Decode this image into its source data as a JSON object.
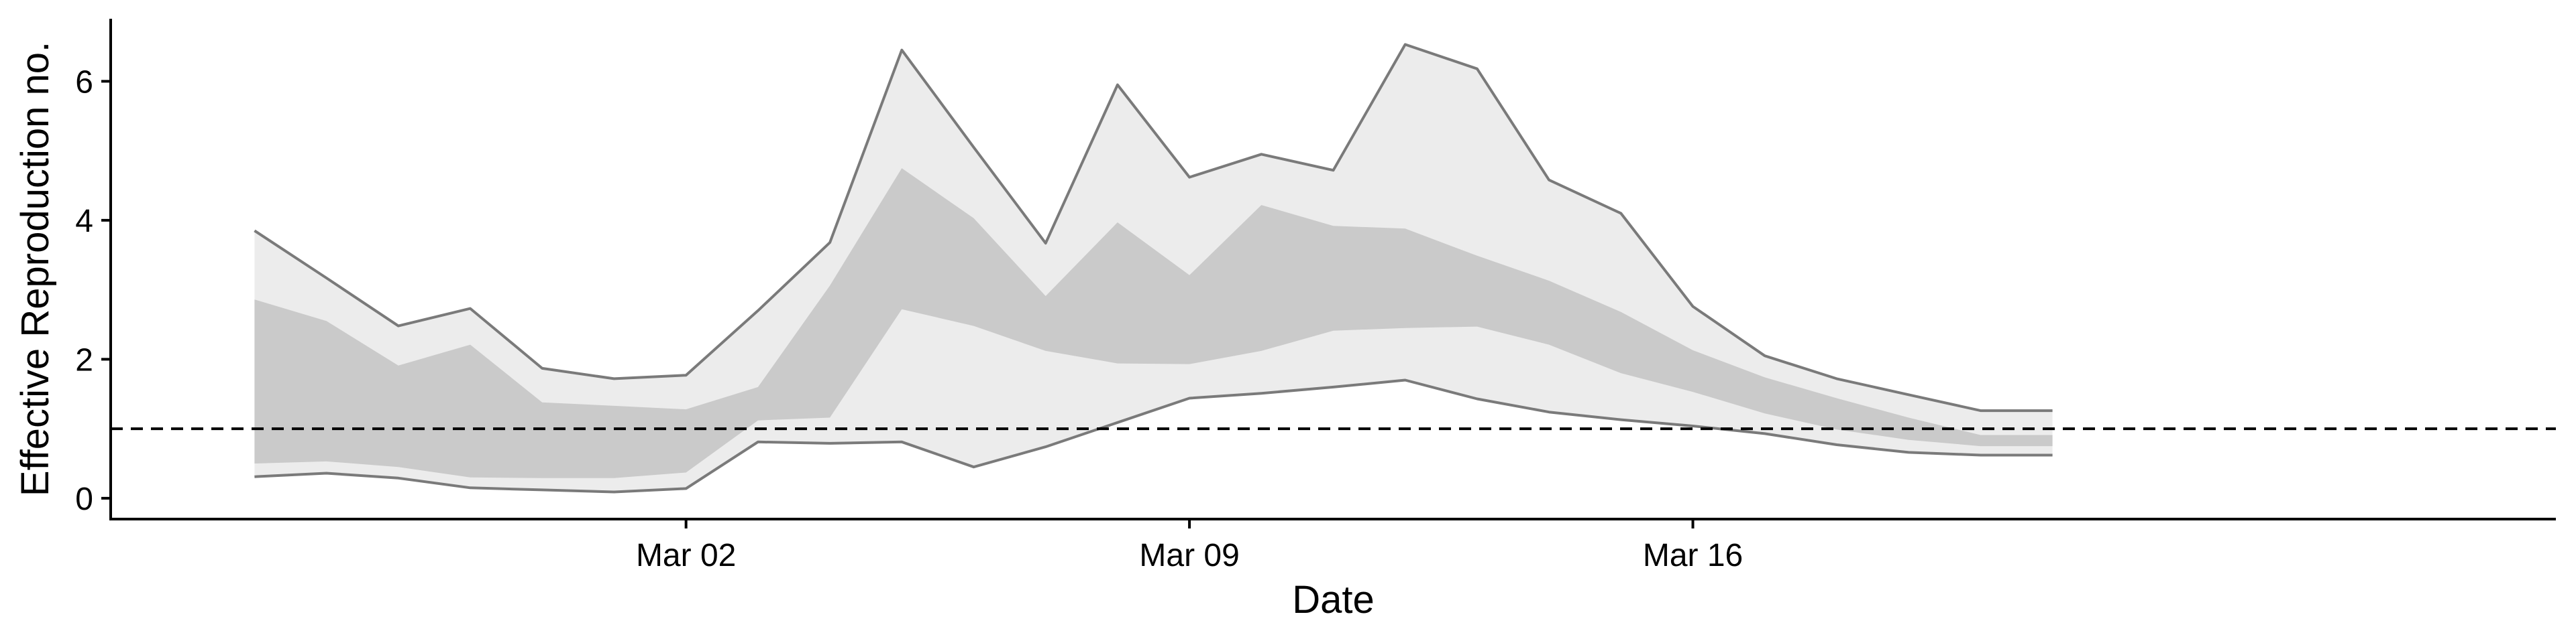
{
  "chart_data": {
    "type": "area",
    "title": "",
    "xlabel": "Date",
    "ylabel": "Effective Reproduction no.",
    "x_axis_type": "date",
    "xlim": [
      "2020-02-23",
      "2020-03-28"
    ],
    "ylim": [
      -0.3,
      6.9
    ],
    "x_ticks": [
      {
        "date": "2020-03-02",
        "label": "Mar 02"
      },
      {
        "date": "2020-03-09",
        "label": "Mar 09"
      },
      {
        "date": "2020-03-16",
        "label": "Mar 16"
      }
    ],
    "y_ticks": [
      0,
      2,
      4,
      6
    ],
    "reference_line": {
      "y": 1,
      "style": "dashed"
    },
    "grid": false,
    "legend": "none",
    "x": [
      "2020-02-25",
      "2020-02-26",
      "2020-02-27",
      "2020-02-28",
      "2020-02-29",
      "2020-03-01",
      "2020-03-02",
      "2020-03-03",
      "2020-03-04",
      "2020-03-05",
      "2020-03-06",
      "2020-03-07",
      "2020-03-08",
      "2020-03-09",
      "2020-03-10",
      "2020-03-11",
      "2020-03-12",
      "2020-03-13",
      "2020-03-14",
      "2020-03-15",
      "2020-03-16",
      "2020-03-17",
      "2020-03-18",
      "2020-03-19",
      "2020-03-20",
      "2020-03-21"
    ],
    "series": [
      {
        "role": "outer_interval",
        "upper": [
          3.85,
          3.17,
          2.48,
          2.73,
          1.87,
          1.72,
          1.77,
          2.7,
          3.68,
          6.45,
          5.05,
          3.67,
          5.95,
          4.62,
          4.95,
          4.72,
          6.53,
          6.18,
          4.58,
          4.1,
          2.76,
          2.05,
          1.72,
          1.49,
          1.26,
          1.26
        ],
        "lower": [
          0.31,
          0.36,
          0.29,
          0.15,
          0.12,
          0.09,
          0.14,
          0.81,
          0.79,
          0.81,
          0.45,
          0.74,
          1.09,
          1.44,
          1.51,
          1.6,
          1.7,
          1.43,
          1.24,
          1.13,
          1.04,
          0.93,
          0.77,
          0.66,
          0.62,
          0.62
        ]
      },
      {
        "role": "inner_interval",
        "upper": [
          2.86,
          2.55,
          1.91,
          2.21,
          1.38,
          1.33,
          1.28,
          1.6,
          3.06,
          4.75,
          4.03,
          2.91,
          3.97,
          3.21,
          4.22,
          3.92,
          3.88,
          3.49,
          3.13,
          2.68,
          2.13,
          1.74,
          1.44,
          1.16,
          0.91,
          0.91
        ],
        "lower": [
          0.5,
          0.53,
          0.45,
          0.3,
          0.29,
          0.29,
          0.37,
          1.12,
          1.16,
          2.72,
          2.48,
          2.12,
          1.94,
          1.93,
          2.12,
          2.41,
          2.45,
          2.47,
          2.21,
          1.8,
          1.53,
          1.22,
          0.99,
          0.84,
          0.75,
          0.75
        ]
      }
    ],
    "colors": {
      "outer_fill": "#ececec",
      "inner_fill": "#cacaca",
      "outline": "#7a7a7a",
      "axis": "#000000"
    }
  }
}
